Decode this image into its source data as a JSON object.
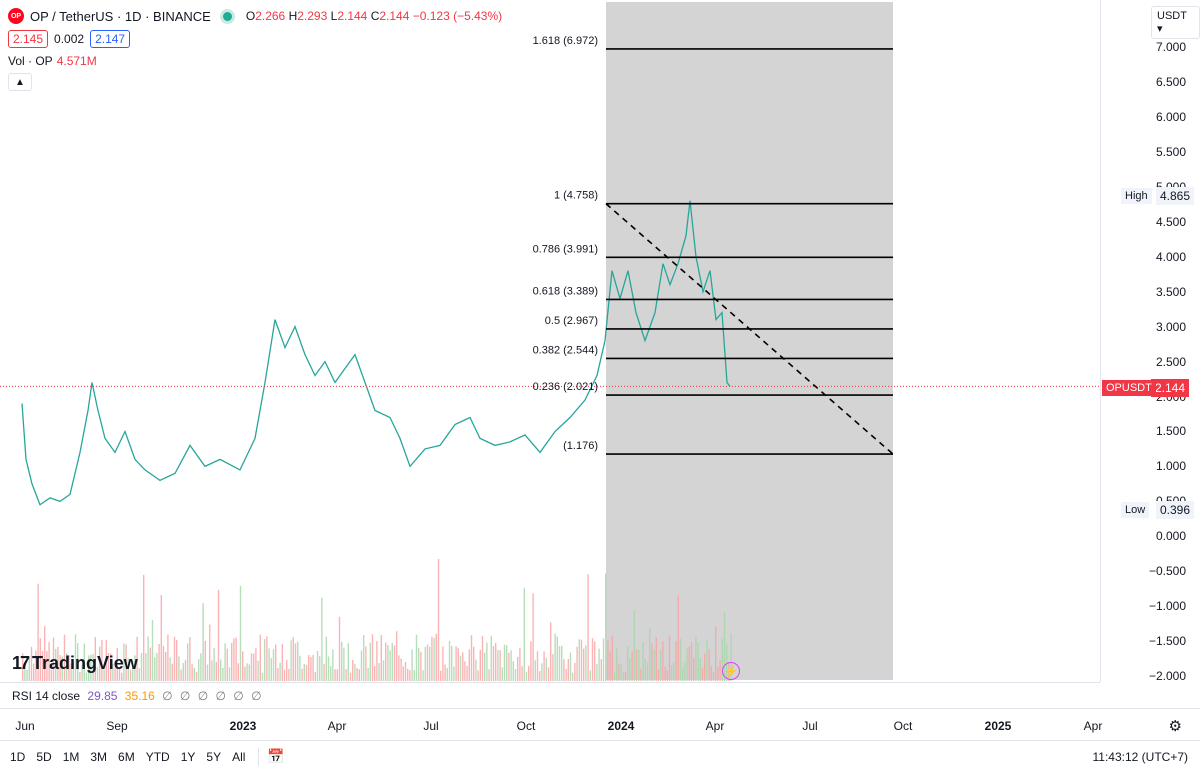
{
  "header": {
    "symbol_logo": "OP",
    "title": "OP / TetherUS · 1D · BINANCE",
    "ohlc": {
      "o_label": "O",
      "o": "2.266",
      "h_label": "H",
      "h": "2.293",
      "l_label": "L",
      "l": "2.144",
      "c_label": "C",
      "c": "2.144",
      "change": "−0.123 (−5.43%)"
    },
    "bid": "2.145",
    "spread": "0.002",
    "ask": "2.147",
    "volume_label": "Vol · OP",
    "volume_value": "4.571M",
    "collapse_icon": "chevron-up-icon"
  },
  "price_axis": {
    "currency": "USDT ▾",
    "ticks": [
      "7.000",
      "6.500",
      "6.000",
      "5.500",
      "5.000",
      "4.500",
      "4.000",
      "3.500",
      "3.000",
      "2.500",
      "2.000",
      "1.500",
      "1.000",
      "0.500",
      "0.000",
      "−0.500",
      "−1.000",
      "−1.500",
      "−2.000"
    ],
    "high_label": "High",
    "high_value": "4.865",
    "low_label": "Low",
    "low_value": "0.396",
    "symbol_tag": "OPUSDT",
    "last_price": "2.144"
  },
  "fib": {
    "levels": [
      {
        "label": "1.618 (6.972)",
        "price": 6.972
      },
      {
        "label": "1 (4.758)",
        "price": 4.758
      },
      {
        "label": "0.786 (3.991)",
        "price": 3.991
      },
      {
        "label": "0.618 (3.389)",
        "price": 3.389
      },
      {
        "label": "0.5 (2.967)",
        "price": 2.967
      },
      {
        "label": "0.382 (2.544)",
        "price": 2.544
      },
      {
        "label": "0.236 (2.021)",
        "price": 2.021
      },
      {
        "label": "(1.176)",
        "price": 1.176
      }
    ]
  },
  "rsi": {
    "label": "RSI 14 close",
    "value1": "29.85",
    "value2": "35.16",
    "extra": "∅ ∅ ∅ ∅ ∅ ∅"
  },
  "time_axis": {
    "labels": [
      {
        "text": "Jun",
        "bold": false
      },
      {
        "text": "Sep",
        "bold": false
      },
      {
        "text": "2023",
        "bold": true
      },
      {
        "text": "Apr",
        "bold": false
      },
      {
        "text": "Jul",
        "bold": false
      },
      {
        "text": "Oct",
        "bold": false
      },
      {
        "text": "2024",
        "bold": true
      },
      {
        "text": "Apr",
        "bold": false
      },
      {
        "text": "Jul",
        "bold": false
      },
      {
        "text": "Oct",
        "bold": false
      },
      {
        "text": "2025",
        "bold": true
      },
      {
        "text": "Apr",
        "bold": false
      }
    ]
  },
  "toolbar": {
    "ranges": [
      "1D",
      "5D",
      "1M",
      "3M",
      "6M",
      "YTD",
      "1Y",
      "5Y",
      "All"
    ],
    "calendar_icon": "calendar-icon",
    "clock": "11:43:12 (UTC+7)"
  },
  "branding": {
    "logo_text": "TradingView",
    "mark": "17"
  },
  "colors": {
    "up": "#22ab94",
    "down": "#f23645",
    "fib_zone": "#cfcfcf",
    "accent": "#2962ff"
  }
}
